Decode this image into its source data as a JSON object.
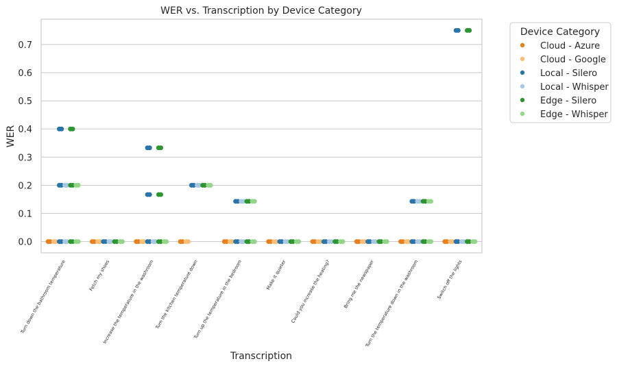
{
  "chart_data": {
    "type": "scatter",
    "title": "WER vs. Transcription by Device Category",
    "xlabel": "Transcription",
    "ylabel": "WER",
    "ylim": [
      -0.04,
      0.79
    ],
    "yticks": [
      "0.0",
      "0.1",
      "0.2",
      "0.3",
      "0.4",
      "0.5",
      "0.6",
      "0.7"
    ],
    "grid": "horizontal",
    "legend_title": "Device Category",
    "legend_position": "outside-right",
    "categories": [
      "Turn down the bathroom temperature",
      "Fetch my shoes",
      "Increase the temperature in the washroom",
      "Turn the kitchen temperature down",
      "Turn up the temperature in the bedroom",
      "Make it quieter",
      "Could you increase the heating?",
      "Bring me the newspaper",
      "Turn the temperature down in the washroom",
      "Switch off the lights"
    ],
    "series": [
      {
        "name": "Cloud - Azure",
        "color": "#e6811f",
        "points": [
          [
            0,
            0.0
          ],
          [
            1,
            0.0
          ],
          [
            2,
            0.0
          ],
          [
            3,
            0.0
          ],
          [
            4,
            0.0
          ],
          [
            5,
            0.0
          ],
          [
            6,
            0.0
          ],
          [
            7,
            0.0
          ],
          [
            8,
            0.0
          ],
          [
            9,
            0.0
          ]
        ]
      },
      {
        "name": "Cloud - Google",
        "color": "#f9bf76",
        "points": [
          [
            0,
            0.0
          ],
          [
            1,
            0.0
          ],
          [
            2,
            0.0
          ],
          [
            3,
            0.0
          ],
          [
            4,
            0.0
          ],
          [
            5,
            0.0
          ],
          [
            6,
            0.0
          ],
          [
            7,
            0.0
          ],
          [
            8,
            0.0
          ],
          [
            9,
            0.0
          ]
        ]
      },
      {
        "name": "Local - Silero",
        "color": "#2a74a8",
        "points": [
          [
            0,
            0.4
          ],
          [
            0,
            0.2
          ],
          [
            0,
            0.0
          ],
          [
            1,
            0.0
          ],
          [
            2,
            0.333
          ],
          [
            2,
            0.167
          ],
          [
            2,
            0.0
          ],
          [
            3,
            0.2
          ],
          [
            4,
            0.143
          ],
          [
            4,
            0.0
          ],
          [
            5,
            0.0
          ],
          [
            6,
            0.0
          ],
          [
            7,
            0.0
          ],
          [
            8,
            0.143
          ],
          [
            8,
            0.0
          ],
          [
            9,
            0.75
          ],
          [
            9,
            0.0
          ]
        ]
      },
      {
        "name": "Local - Whisper",
        "color": "#a9c8e3",
        "points": [
          [
            0,
            0.2
          ],
          [
            0,
            0.0
          ],
          [
            1,
            0.0
          ],
          [
            2,
            0.0
          ],
          [
            3,
            0.2
          ],
          [
            4,
            0.143
          ],
          [
            4,
            0.0
          ],
          [
            5,
            0.0
          ],
          [
            6,
            0.0
          ],
          [
            7,
            0.0
          ],
          [
            8,
            0.143
          ],
          [
            8,
            0.0
          ],
          [
            9,
            0.0
          ]
        ]
      },
      {
        "name": "Edge - Silero",
        "color": "#2f9432",
        "points": [
          [
            0,
            0.4
          ],
          [
            0,
            0.2
          ],
          [
            0,
            0.0
          ],
          [
            1,
            0.0
          ],
          [
            2,
            0.333
          ],
          [
            2,
            0.167
          ],
          [
            2,
            0.0
          ],
          [
            3,
            0.2
          ],
          [
            4,
            0.143
          ],
          [
            4,
            0.0
          ],
          [
            5,
            0.0
          ],
          [
            6,
            0.0
          ],
          [
            7,
            0.0
          ],
          [
            8,
            0.143
          ],
          [
            8,
            0.0
          ],
          [
            9,
            0.75
          ],
          [
            9,
            0.0
          ]
        ]
      },
      {
        "name": "Edge - Whisper",
        "color": "#93d689",
        "points": [
          [
            0,
            0.2
          ],
          [
            0,
            0.0
          ],
          [
            1,
            0.0
          ],
          [
            2,
            0.0
          ],
          [
            3,
            0.2
          ],
          [
            4,
            0.143
          ],
          [
            4,
            0.0
          ],
          [
            5,
            0.0
          ],
          [
            6,
            0.0
          ],
          [
            7,
            0.0
          ],
          [
            8,
            0.143
          ],
          [
            8,
            0.0
          ],
          [
            9,
            0.0
          ]
        ]
      }
    ]
  }
}
